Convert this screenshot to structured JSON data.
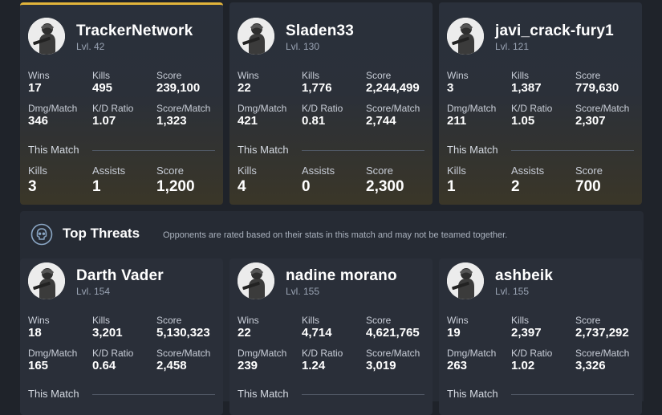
{
  "players": [
    {
      "name": "TrackerNetwork",
      "level": "Lvl. 42",
      "stats": [
        {
          "label": "Wins",
          "value": "17"
        },
        {
          "label": "Kills",
          "value": "495"
        },
        {
          "label": "Score",
          "value": "239,100"
        },
        {
          "label": "Dmg/Match",
          "value": "346"
        },
        {
          "label": "K/D Ratio",
          "value": "1.07"
        },
        {
          "label": "Score/Match",
          "value": "1,323"
        }
      ],
      "match_label": "This Match",
      "match": [
        {
          "label": "Kills",
          "value": "3"
        },
        {
          "label": "Assists",
          "value": "1"
        },
        {
          "label": "Score",
          "value": "1,200"
        }
      ]
    },
    {
      "name": "Sladen33",
      "level": "Lvl. 130",
      "stats": [
        {
          "label": "Wins",
          "value": "22"
        },
        {
          "label": "Kills",
          "value": "1,776"
        },
        {
          "label": "Score",
          "value": "2,244,499"
        },
        {
          "label": "Dmg/Match",
          "value": "421"
        },
        {
          "label": "K/D Ratio",
          "value": "0.81"
        },
        {
          "label": "Score/Match",
          "value": "2,744"
        }
      ],
      "match_label": "This Match",
      "match": [
        {
          "label": "Kills",
          "value": "4"
        },
        {
          "label": "Assists",
          "value": "0"
        },
        {
          "label": "Score",
          "value": "2,300"
        }
      ]
    },
    {
      "name": "javi_crack-fury1",
      "level": "Lvl. 121",
      "stats": [
        {
          "label": "Wins",
          "value": "3"
        },
        {
          "label": "Kills",
          "value": "1,387"
        },
        {
          "label": "Score",
          "value": "779,630"
        },
        {
          "label": "Dmg/Match",
          "value": "211"
        },
        {
          "label": "K/D Ratio",
          "value": "1.05"
        },
        {
          "label": "Score/Match",
          "value": "2,307"
        }
      ],
      "match_label": "This Match",
      "match": [
        {
          "label": "Kills",
          "value": "1"
        },
        {
          "label": "Assists",
          "value": "2"
        },
        {
          "label": "Score",
          "value": "700"
        }
      ]
    }
  ],
  "threats": {
    "icon": "skull-icon",
    "title": "Top Threats",
    "subtitle": "Opponents are rated based on their stats in this match and may not be teamed together.",
    "players": [
      {
        "name": "Darth Vader",
        "level": "Lvl. 154",
        "stats": [
          {
            "label": "Wins",
            "value": "18"
          },
          {
            "label": "Kills",
            "value": "3,201"
          },
          {
            "label": "Score",
            "value": "5,130,323"
          },
          {
            "label": "Dmg/Match",
            "value": "165"
          },
          {
            "label": "K/D Ratio",
            "value": "0.64"
          },
          {
            "label": "Score/Match",
            "value": "2,458"
          }
        ],
        "match_label": "This Match"
      },
      {
        "name": "nadine morano",
        "level": "Lvl. 155",
        "stats": [
          {
            "label": "Wins",
            "value": "22"
          },
          {
            "label": "Kills",
            "value": "4,714"
          },
          {
            "label": "Score",
            "value": "4,621,765"
          },
          {
            "label": "Dmg/Match",
            "value": "239"
          },
          {
            "label": "K/D Ratio",
            "value": "1.24"
          },
          {
            "label": "Score/Match",
            "value": "3,019"
          }
        ],
        "match_label": "This Match"
      },
      {
        "name": "ashbeik",
        "level": "Lvl. 155",
        "stats": [
          {
            "label": "Wins",
            "value": "19"
          },
          {
            "label": "Kills",
            "value": "2,397"
          },
          {
            "label": "Score",
            "value": "2,737,292"
          },
          {
            "label": "Dmg/Match",
            "value": "263"
          },
          {
            "label": "K/D Ratio",
            "value": "1.02"
          },
          {
            "label": "Score/Match",
            "value": "3,326"
          }
        ],
        "match_label": "This Match"
      }
    ]
  },
  "colors": {
    "accent": "#e2b43b",
    "background": "#1f232a",
    "card": "#2a303b"
  }
}
